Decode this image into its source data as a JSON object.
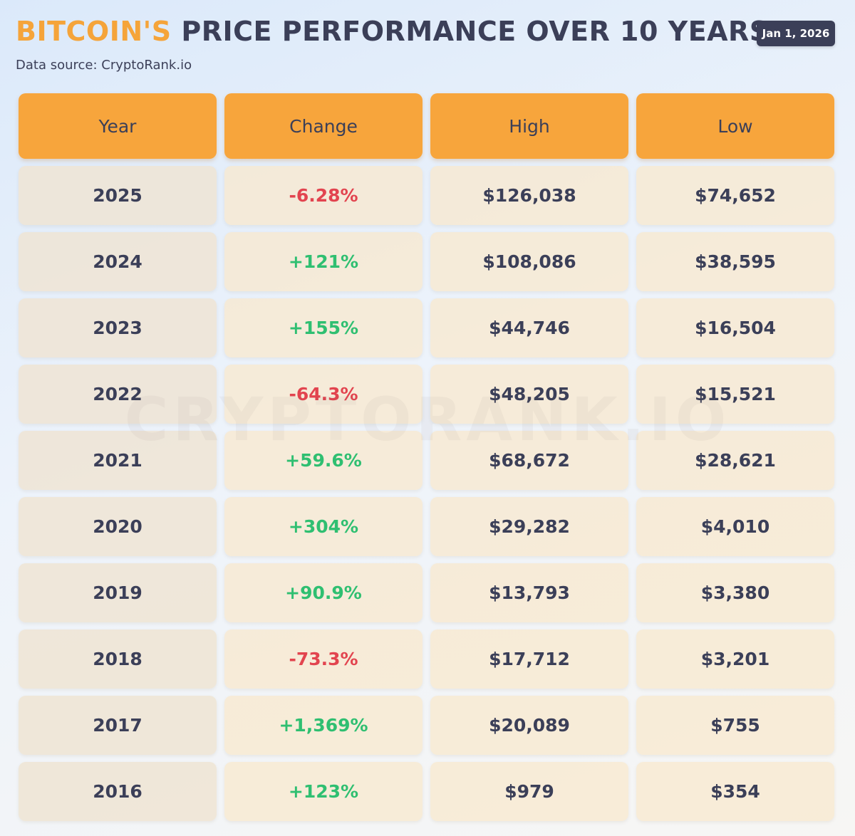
{
  "header": {
    "title_accent": "BITCOIN'S",
    "title_rest": " PRICE PERFORMANCE OVER 10 YEARS",
    "source": "Data source: CryptoRank.io",
    "date": "Jan 1, 2026"
  },
  "watermark": "CRYPTORANK.IO",
  "colors": {
    "accent": "#f5a43a",
    "header_fill": "#f7a53c",
    "text": "#3b3f58",
    "positive": "#2fbf71",
    "negative": "#e2444f"
  },
  "chart_data": {
    "type": "table",
    "title": "BITCOIN'S PRICE PERFORMANCE OVER 10 YEARS",
    "columns": [
      "Year",
      "Change",
      "High",
      "Low"
    ],
    "rows": [
      {
        "year": "2025",
        "change": "-6.28%",
        "high": "$126,038",
        "low": "$74,652",
        "change_value": -6.28,
        "high_value": 126038,
        "low_value": 74652
      },
      {
        "year": "2024",
        "change": "+121%",
        "high": "$108,086",
        "low": "$38,595",
        "change_value": 121,
        "high_value": 108086,
        "low_value": 38595
      },
      {
        "year": "2023",
        "change": "+155%",
        "high": "$44,746",
        "low": "$16,504",
        "change_value": 155,
        "high_value": 44746,
        "low_value": 16504
      },
      {
        "year": "2022",
        "change": "-64.3%",
        "high": "$48,205",
        "low": "$15,521",
        "change_value": -64.3,
        "high_value": 48205,
        "low_value": 15521
      },
      {
        "year": "2021",
        "change": "+59.6%",
        "high": "$68,672",
        "low": "$28,621",
        "change_value": 59.6,
        "high_value": 68672,
        "low_value": 28621
      },
      {
        "year": "2020",
        "change": "+304%",
        "high": "$29,282",
        "low": "$4,010",
        "change_value": 304,
        "high_value": 29282,
        "low_value": 4010
      },
      {
        "year": "2019",
        "change": "+90.9%",
        "high": "$13,793",
        "low": "$3,380",
        "change_value": 90.9,
        "high_value": 13793,
        "low_value": 3380
      },
      {
        "year": "2018",
        "change": "-73.3%",
        "high": "$17,712",
        "low": "$3,201",
        "change_value": -73.3,
        "high_value": 17712,
        "low_value": 3201
      },
      {
        "year": "2017",
        "change": "+1,369%",
        "high": "$20,089",
        "low": "$755",
        "change_value": 1369,
        "high_value": 20089,
        "low_value": 755
      },
      {
        "year": "2016",
        "change": "+123%",
        "high": "$979",
        "low": "$354",
        "change_value": 123,
        "high_value": 979,
        "low_value": 354
      }
    ]
  }
}
